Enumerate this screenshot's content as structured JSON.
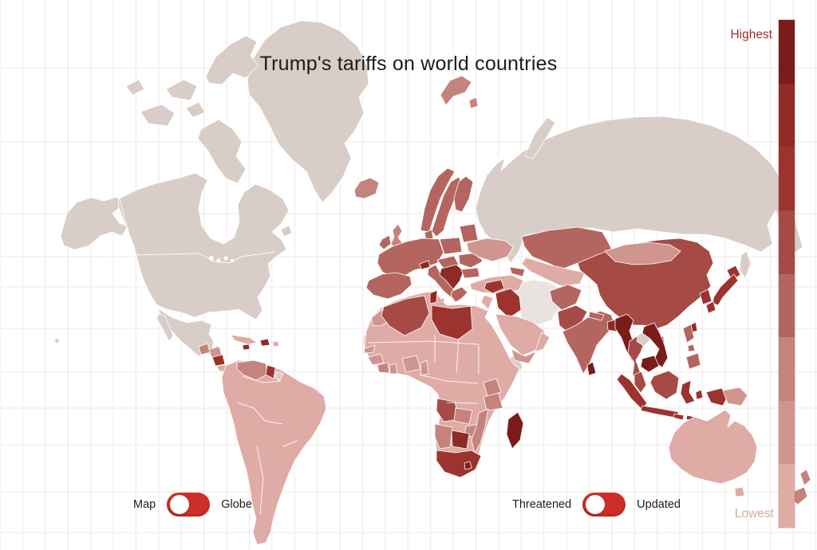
{
  "title": "Trump's tariffs on world countries",
  "legend": {
    "high_label": "Highest",
    "low_label": "Lowest",
    "high_label_color": "#9e2f28",
    "low_label_color": "#d9a8a2",
    "colors": [
      "#7a1c1a",
      "#8e2b27",
      "#9c332e",
      "#a54a44",
      "#b4655f",
      "#c5837e",
      "#d0958f",
      "#dfaba5"
    ]
  },
  "toggles": {
    "projection": {
      "left_label": "Map",
      "right_label": "Globe",
      "state": "left"
    },
    "mode": {
      "left_label": "Threatened",
      "right_label": "Updated",
      "state": "left"
    },
    "accent_color": "#ce2e28"
  },
  "palette": {
    "1": "#7a1c1a",
    "2": "#8e2b27",
    "3": "#9c332e",
    "4": "#a54a44",
    "5": "#b4655f",
    "6": "#c5837e",
    "7": "#d0958f",
    "8": "#dfaba5",
    "nodata": "#d8cdc7",
    "pale": "#e9e3e0"
  },
  "chart_data": {
    "type": "choropleth",
    "title": "Trump's tariffs on world countries",
    "scale": {
      "top": "Highest",
      "bottom": "Lowest",
      "levels": "1 = highest tariff … 8 = lowest tariff, nodata = not shown"
    },
    "regions": [
      {
        "id": "united-states",
        "label": "United States",
        "level": "nodata"
      },
      {
        "id": "canada",
        "label": "Canada",
        "level": "nodata"
      },
      {
        "id": "greenland",
        "label": "Greenland",
        "level": "nodata"
      },
      {
        "id": "mexico",
        "label": "Mexico",
        "level": "nodata"
      },
      {
        "id": "russia",
        "label": "Russia",
        "level": "nodata"
      },
      {
        "id": "belarus",
        "label": "Belarus",
        "level": "nodata"
      },
      {
        "id": "north-korea",
        "label": "North Korea",
        "level": "nodata"
      },
      {
        "id": "laos",
        "label": "Laos",
        "level": "nodata"
      },
      {
        "id": "somalia",
        "label": "Somalia",
        "level": "nodata"
      },
      {
        "id": "western-sahara",
        "label": "Western Sahara",
        "level": "nodata"
      },
      {
        "id": "french-guiana",
        "label": "French Guiana",
        "level": "nodata"
      },
      {
        "id": "iran",
        "label": "Iran",
        "level": "pale"
      },
      {
        "id": "myanmar",
        "label": "Myanmar",
        "level": "1"
      },
      {
        "id": "vietnam",
        "label": "Vietnam",
        "level": "1"
      },
      {
        "id": "cambodia",
        "label": "Cambodia",
        "level": "1"
      },
      {
        "id": "madagascar",
        "label": "Madagascar",
        "level": "1"
      },
      {
        "id": "lesotho",
        "label": "Lesotho",
        "level": "1"
      },
      {
        "id": "sri-lanka",
        "label": "Sri Lanka",
        "level": "1"
      },
      {
        "id": "switzerland",
        "label": "Switzerland",
        "level": "2"
      },
      {
        "id": "balkans",
        "label": "Serbia / Balkans",
        "level": "2"
      },
      {
        "id": "botswana",
        "label": "Botswana",
        "level": "2"
      },
      {
        "id": "bangladesh",
        "label": "Bangladesh",
        "level": "2"
      },
      {
        "id": "tunisia",
        "label": "Tunisia",
        "level": "2"
      },
      {
        "id": "hispaniola",
        "label": "Dominican Republic / Haiti",
        "level": "2"
      },
      {
        "id": "jamaica",
        "label": "Jamaica",
        "level": "2"
      },
      {
        "id": "taiwan",
        "label": "Taiwan",
        "level": "2"
      },
      {
        "id": "hainan",
        "label": "Hainan",
        "level": "2"
      },
      {
        "id": "iraq",
        "label": "Iraq",
        "level": "3"
      },
      {
        "id": "syria",
        "label": "Syria",
        "level": "3"
      },
      {
        "id": "japan",
        "label": "Japan",
        "level": "3"
      },
      {
        "id": "south-korea",
        "label": "South Korea",
        "level": "3"
      },
      {
        "id": "libya",
        "label": "Libya",
        "level": "3"
      },
      {
        "id": "south-africa",
        "label": "South Africa",
        "level": "3"
      },
      {
        "id": "sumatra",
        "label": "Indonesia (Sumatra)",
        "level": "3"
      },
      {
        "id": "java",
        "label": "Indonesia (Java)",
        "level": "3"
      },
      {
        "id": "sulawesi",
        "label": "Indonesia (Sulawesi)",
        "level": "3"
      },
      {
        "id": "maluku",
        "label": "Indonesia (Maluku)",
        "level": "3"
      },
      {
        "id": "lesser-sunda",
        "label": "Indonesia (Lesser Sunda)",
        "level": "3"
      },
      {
        "id": "west-papua",
        "label": "Indonesia (Papua)",
        "level": "3"
      },
      {
        "id": "nicaragua",
        "label": "Nicaragua",
        "level": "3"
      },
      {
        "id": "guyana",
        "label": "Guyana",
        "level": "3"
      },
      {
        "id": "moldova",
        "label": "Moldova",
        "level": "3"
      },
      {
        "id": "china",
        "label": "China",
        "level": "4"
      },
      {
        "id": "algeria",
        "label": "Algeria",
        "level": "4"
      },
      {
        "id": "thailand",
        "label": "Thailand",
        "level": "4"
      },
      {
        "id": "borneo",
        "label": "Malaysia / Indonesia (Borneo)",
        "level": "4"
      },
      {
        "id": "malaysia",
        "label": "Malaysia",
        "level": "4"
      },
      {
        "id": "angola",
        "label": "Angola",
        "level": "4"
      },
      {
        "id": "pakistan",
        "label": "Pakistan",
        "level": "4"
      },
      {
        "id": "eu-west",
        "label": "European Union (west)",
        "level": "5"
      },
      {
        "id": "iberia",
        "label": "Spain / Portugal",
        "level": "5"
      },
      {
        "id": "italy",
        "label": "Italy",
        "level": "5"
      },
      {
        "id": "sicily",
        "label": "Sicily",
        "level": "5"
      },
      {
        "id": "norway",
        "label": "Norway",
        "level": "5"
      },
      {
        "id": "sweden",
        "label": "Sweden",
        "level": "5"
      },
      {
        "id": "finland",
        "label": "Finland",
        "level": "5"
      },
      {
        "id": "denmark",
        "label": "Denmark",
        "level": "5"
      },
      {
        "id": "baltics",
        "label": "Baltic states",
        "level": "5"
      },
      {
        "id": "poland",
        "label": "Poland",
        "level": "5"
      },
      {
        "id": "austria-hungary",
        "label": "Austria / Hungary",
        "level": "5"
      },
      {
        "id": "romania",
        "label": "Romania",
        "level": "5"
      },
      {
        "id": "bulgaria",
        "label": "Bulgaria",
        "level": "5"
      },
      {
        "id": "greece",
        "label": "Greece",
        "level": "5"
      },
      {
        "id": "ireland",
        "label": "Ireland",
        "level": "5"
      },
      {
        "id": "caucasus",
        "label": "Caucasus",
        "level": "5"
      },
      {
        "id": "india",
        "label": "India",
        "level": "5"
      },
      {
        "id": "nepal",
        "label": "Nepal",
        "level": "5"
      },
      {
        "id": "afghanistan",
        "label": "Afghanistan",
        "level": "5"
      },
      {
        "id": "kazakhstan",
        "label": "Kazakhstan",
        "level": "5"
      },
      {
        "id": "philippines",
        "label": "Philippines",
        "level": "5"
      },
      {
        "id": "united-kingdom",
        "label": "United Kingdom",
        "level": "6"
      },
      {
        "id": "iceland",
        "label": "Iceland",
        "level": "6"
      },
      {
        "id": "svalbard",
        "label": "Svalbard",
        "level": "6"
      },
      {
        "id": "venezuela",
        "label": "Venezuela",
        "level": "6"
      },
      {
        "id": "namibia",
        "label": "Namibia",
        "level": "6"
      },
      {
        "id": "zambia",
        "label": "Zambia",
        "level": "6"
      },
      {
        "id": "zimbabwe",
        "label": "Zimbabwe",
        "level": "6"
      },
      {
        "id": "mozambique",
        "label": "Mozambique",
        "level": "6"
      },
      {
        "id": "kenya",
        "label": "Kenya",
        "level": "6"
      },
      {
        "id": "tanzania",
        "label": "Tanzania",
        "level": "6"
      },
      {
        "id": "ivory-coast",
        "label": "Côte d'Ivoire",
        "level": "6"
      },
      {
        "id": "guatemala",
        "label": "Guatemala",
        "level": "6"
      },
      {
        "id": "new-zealand",
        "label": "New Zealand",
        "level": "6"
      },
      {
        "id": "mongolia",
        "label": "Mongolia",
        "level": "7"
      },
      {
        "id": "nigeria",
        "label": "Nigeria",
        "level": "7"
      },
      {
        "id": "papua-new-guinea",
        "label": "Papua New Guinea",
        "level": "7"
      },
      {
        "id": "yemen",
        "label": "Yemen",
        "level": "7"
      },
      {
        "id": "honduras",
        "label": "Honduras",
        "level": "7"
      },
      {
        "id": "morocco",
        "label": "Morocco",
        "level": "7"
      },
      {
        "id": "senegal",
        "label": "Senegal",
        "level": "7"
      },
      {
        "id": "guinea",
        "label": "Guinea",
        "level": "7"
      },
      {
        "id": "ghana",
        "label": "Ghana",
        "level": "7"
      },
      {
        "id": "cameroon",
        "label": "Cameroon",
        "level": "7"
      },
      {
        "id": "ukraine",
        "label": "Ukraine",
        "level": "7"
      },
      {
        "id": "africa-base",
        "label": "Other Africa (Sahara / Sahel / Congo / Egypt / Ethiopia)",
        "level": "8"
      },
      {
        "id": "south-america-base",
        "label": "South America (Brazil / Andes / Argentina)",
        "level": "8"
      },
      {
        "id": "australia",
        "label": "Australia",
        "level": "8"
      },
      {
        "id": "tasmania",
        "label": "Tasmania",
        "level": "8"
      },
      {
        "id": "saudi-arabia",
        "label": "Saudi Arabia",
        "level": "8"
      },
      {
        "id": "oman",
        "label": "Oman",
        "level": "8"
      },
      {
        "id": "jordan-israel",
        "label": "Jordan / Israel",
        "level": "8"
      },
      {
        "id": "turkey",
        "label": "Turkey",
        "level": "8"
      },
      {
        "id": "central-asia",
        "label": "Uzbekistan / Turkmenistan",
        "level": "8"
      },
      {
        "id": "kyrgyz-tajik",
        "label": "Kyrgyzstan / Tajikistan",
        "level": "8"
      },
      {
        "id": "costa-rica-panama",
        "label": "Costa Rica / Panama",
        "level": "8"
      },
      {
        "id": "cuba",
        "label": "Cuba",
        "level": "8"
      },
      {
        "id": "puerto-rico",
        "label": "Puerto Rico",
        "level": "8"
      }
    ]
  }
}
